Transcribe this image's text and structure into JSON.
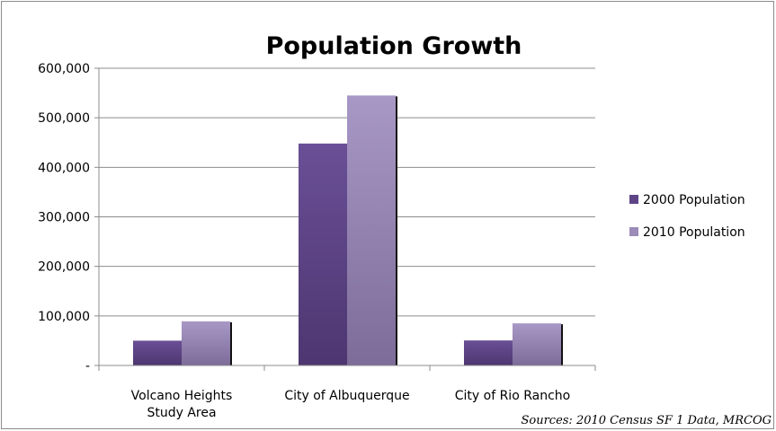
{
  "chart_data": {
    "type": "bar",
    "title": "Population Growth",
    "categories": [
      [
        "Volcano Heights",
        "Study Area"
      ],
      [
        "City of Albuquerque"
      ],
      [
        "City of Rio Rancho"
      ]
    ],
    "series": [
      {
        "name": "2000 Population",
        "values": [
          50000,
          448000,
          50500
        ],
        "color": "#5e4485"
      },
      {
        "name": "2010 Population",
        "values": [
          89000,
          545000,
          85000
        ],
        "color": "#9b8bb8"
      }
    ],
    "ylim": [
      0,
      600000
    ],
    "yticks": [
      0,
      100000,
      200000,
      300000,
      400000,
      500000,
      600000
    ],
    "ytick_labels": [
      "-",
      "100,000",
      "200,000",
      "300,000",
      "400,000",
      "500,000",
      "600,000"
    ],
    "grid": true,
    "legend_position": "right",
    "source": "Sources:   2010 Census SF 1 Data, MRCOG"
  }
}
